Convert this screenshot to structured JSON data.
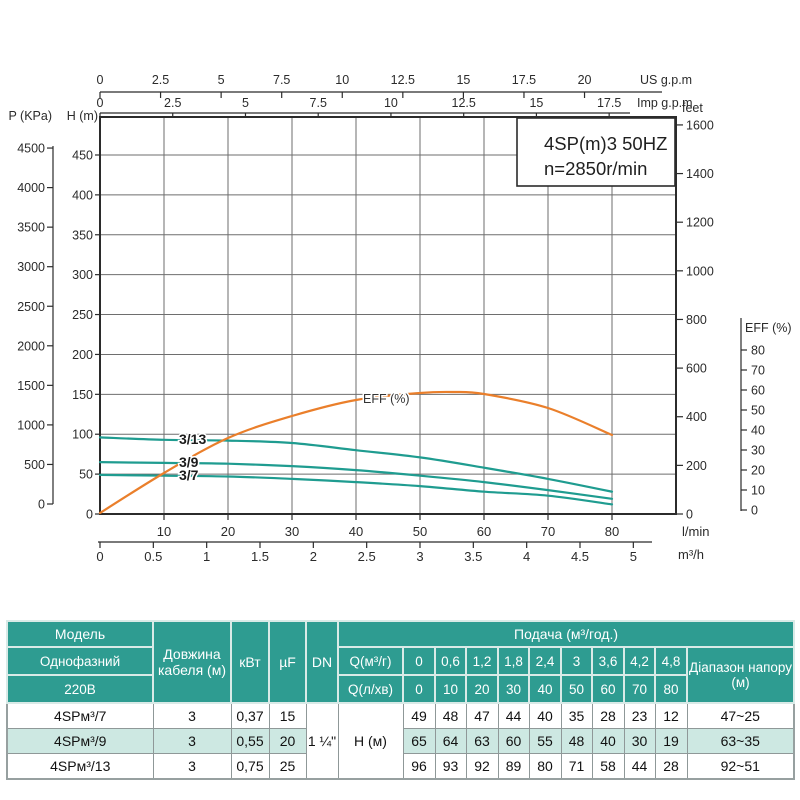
{
  "chart": {
    "axes": {
      "us_gpm": {
        "label": "US g.p.m",
        "ticks": [
          0,
          2.5,
          5,
          7.5,
          10,
          12.5,
          15,
          17.5,
          20
        ]
      },
      "imp_gpm": {
        "label": "Imp g.p.m",
        "ticks": [
          0,
          2.5,
          5,
          7.5,
          10,
          12.5,
          15,
          17.5
        ]
      },
      "p_kpa": {
        "label": "P (KPa)",
        "ticks": [
          0,
          500,
          1000,
          1500,
          2000,
          2500,
          3000,
          3500,
          4000,
          4500
        ]
      },
      "h_m": {
        "label": "H (m)",
        "ticks": [
          0,
          50,
          100,
          150,
          200,
          250,
          300,
          350,
          400,
          450
        ]
      },
      "feet": {
        "label": "feet",
        "ticks": [
          0,
          200,
          400,
          600,
          800,
          1000,
          1200,
          1400,
          1600
        ]
      },
      "eff_pct": {
        "label": "EFF (%)",
        "ticks": [
          0,
          10,
          20,
          30,
          40,
          50,
          60,
          70,
          80
        ]
      },
      "lmin": {
        "label": "l/min",
        "ticks": [
          10,
          20,
          30,
          40,
          50,
          60,
          70,
          80
        ]
      },
      "m3h": {
        "label": "m³/h",
        "ticks": [
          0,
          0.5,
          1,
          1.5,
          2,
          2.5,
          3,
          3.5,
          4,
          4.5,
          5
        ]
      }
    },
    "colors": {
      "curve": "#1f9c90",
      "eff_curve": "#ea7f2b",
      "grid": "#6e6e6e",
      "frame": "#2b2b2b",
      "text": "#2b2b2b"
    }
  },
  "chart_data": {
    "type": "line",
    "title_line1": "4SP(m)3  50HZ",
    "title_line2": "n=2850r/min",
    "xlabel": "l/min",
    "xlabel_secondary": "m³/h",
    "ylabel": "H (m)",
    "xlim_lmin": [
      0,
      90
    ],
    "ylim_m": [
      0,
      497
    ],
    "x_lmin": [
      0,
      10,
      20,
      30,
      40,
      50,
      60,
      70,
      80
    ],
    "series": [
      {
        "name": "3/7",
        "values_H_m": [
          49,
          48,
          47,
          44,
          40,
          35,
          28,
          23,
          12
        ]
      },
      {
        "name": "3/9",
        "values_H_m": [
          65,
          64,
          63,
          60,
          55,
          48,
          40,
          30,
          19
        ]
      },
      {
        "name": "3/13",
        "values_H_m": [
          96,
          93,
          92,
          89,
          80,
          71,
          58,
          44,
          28
        ]
      }
    ],
    "efficiency_curve": {
      "name": "EFF (%)",
      "x_lmin": [
        0,
        10,
        20,
        30,
        40,
        50,
        55,
        60,
        70,
        80
      ],
      "values_pct": [
        0,
        18.5,
        36,
        47,
        55,
        58.5,
        59,
        58,
        51,
        37.5
      ]
    }
  },
  "table": {
    "header": {
      "model_rows": [
        "Модель",
        "Однофазний",
        "220В"
      ],
      "cable": "Довжина кабеля (м)",
      "kw": "кВт",
      "uf": "µF",
      "dn": "DN",
      "flow_title": "Подача (м³/год.)",
      "q1": "Q(м³/г)",
      "q2": "Q(л/хв)",
      "q1_values": [
        "0",
        "0,6",
        "1,2",
        "1,8",
        "2,4",
        "3",
        "3,6",
        "4,2",
        "4,8"
      ],
      "q2_values": [
        "0",
        "10",
        "20",
        "30",
        "40",
        "50",
        "60",
        "70",
        "80"
      ],
      "range": "Діапазон напору (м)"
    },
    "dn_value": "1 ¼\"",
    "h_label": "H (м)",
    "rows": [
      {
        "model": "4SPм³/7",
        "cable": "3",
        "kw": "0,37",
        "uf": "15",
        "values": [
          "49",
          "48",
          "47",
          "44",
          "40",
          "35",
          "28",
          "23",
          "12"
        ],
        "range": "47~25",
        "highlight": false
      },
      {
        "model": "4SPм³/9",
        "cable": "3",
        "kw": "0,55",
        "uf": "20",
        "values": [
          "65",
          "64",
          "63",
          "60",
          "55",
          "48",
          "40",
          "30",
          "19"
        ],
        "range": "63~35",
        "highlight": true
      },
      {
        "model": "4SPм³/13",
        "cable": "3",
        "kw": "0,75",
        "uf": "25",
        "values": [
          "96",
          "93",
          "92",
          "89",
          "80",
          "71",
          "58",
          "44",
          "28"
        ],
        "range": "92~51",
        "highlight": false
      }
    ],
    "colors": {
      "header_bg": "#2e9c91",
      "header_text": "#ffffff",
      "highlight_bg": "#cde8e2",
      "border": "#8f9898"
    }
  }
}
